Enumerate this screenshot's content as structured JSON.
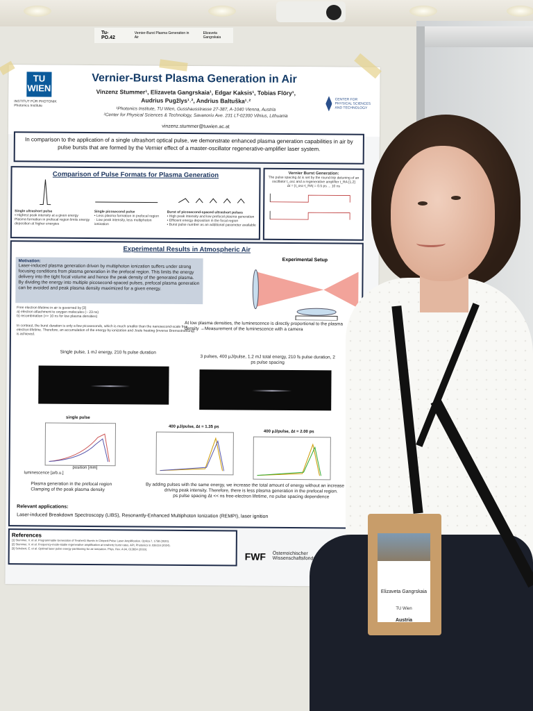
{
  "board": {
    "tag_code": "Tu-PO.42",
    "tag_title": "Vernier-Burst Plasma Generation in Air",
    "tag_author": "Elizaveta Gangrskaia"
  },
  "poster": {
    "title": "Vernier-Burst Plasma Generation in Air",
    "authors_line1": "Vinzenz Stummer¹, Elizaveta Gangrskaia¹, Edgar Kaksis¹, Tobias Flöry¹,",
    "authors_line2": "Audrius Pugžlys¹˒², Andrius Baltuška¹˒²",
    "affil1": "¹Photonics Institute, TU Wien, Gusshausstrasse 27-387, A-1040 Vienna, Austria",
    "affil2": "²Center for Physical Sciences & Technology, Savanoriu Ave. 231 LT-02300 Vilnius, Lithuania",
    "email": "vinzenz.stummer@tuwien.ac.at",
    "tu_logo": "TU WIEN",
    "institute": "INSTITUT FÜR PHOTONIK",
    "institute_sub": "Photonics Institute",
    "center": "CENTER FOR PHYSICAL SCIENCES AND TECHNOLOGY",
    "abstract": "In comparison to the application of a single ultrashort optical pulse, we demonstrate enhanced plasma generation capabilities in air by pulse bursts that are formed by the Vernier effect of a master-oscillator regenerative-amplifier laser system.",
    "comparison_title": "Comparison of Pulse Formats for Plasma Generation",
    "single_pulse": "Single ultrashort pulse",
    "single_pulse_notes": "• Highest peak intensity at a given energy\nPlasma formation in prefocal region limits energy deposition at higher energies",
    "pico_pulse": "Single picosecond pulse",
    "pico_notes": "• Less plasma formation in prefocal region\n· Low peak intensity, less multiphoton ionization",
    "burst_pulse": "Burst of picosecond-spaced ultrashort pulses",
    "burst_notes": "• High peak intensity and low prefocal plasma generation\n• Efficient energy deposition in the focal region\n• Burst pulse number as an additional parameter available",
    "vernier_title": "Vernier Burst Generation:",
    "vernier_text": "The pulse spacing Δt is set by the round-trip detuning of an oscillator t_osc and a regenerative amplifier t_RA [1,2]",
    "vernier_eq": "Δt = |t_osc-t_RA| = 0.5 ps ... 10 ns",
    "results_title": "Experimental Results in Atmospheric Air",
    "motivation": "Motivation:",
    "motivation_text": "Laser-induced plasma generation driven by multiphoton ionization suffers under strong focusing conditions from plasma generation in the prefocal region. This limits the energy delivery into the tight focal volume and hence the peak density of the generated plasma. By dividing the energy into multiple picosecond-spaced pulses, prefocal plasma generation can be avoided and peak plasma density maximized for a given energy.",
    "setup_title": "Experimental Setup",
    "lifetime_text": "Free electron lifetime in air is governed by [3]\n a) electron attachment to oxygen molecules (~ 23 ns)\n b) recombination (>> 10 ns for low plasma densities)",
    "burst_text": "In contrast, the burst duration is only a few picoseconds, which is much smaller than the nanosecond-scale free electron lifetime. Therefore, an accumulation of the energy by ionization and Joule heating (inverse Bremsstrahlung) is achieved.",
    "lum_text": "At low plasma densities, the luminescence is directly proportional to the plasma density →Measurement of the luminescence with a camera",
    "img1_caption": "Single pulse, 1 mJ energy, 210 fs pulse duration",
    "img2_caption": "3 pulses, 400 µJ/pulse, 1.2 mJ total energy, 210 fs pulse duration, 2 ps pulse spacing",
    "plot1_title": "single pulse",
    "plot2_title": "400 µJ/pulse, Δt = 1.35 ps",
    "plot3_title": "400 µJ/pulse, Δt = 2.00 ps",
    "xlabel": "position [mm]",
    "ylabel": "luminescence [arb.u.]",
    "concl1": "Plasma generation in the prefocal region\nClamping of the peak plasma density",
    "concl2": "By adding pulses with the same energy, we increase the total amount of energy without an increase in the driving peak intensity. Therefore, there is less plasma generation in the prefocal region.\nps pulse spacing Δt << ns free-electron lifetime, no pulse spacing dependence",
    "apps_title": "Relevant applications:",
    "apps_text": "Laser-induced Breakdown Spectroscopy (LIBS), Resonantly-Enhanced Multiphoton Ionization (REMPI), laser ignition",
    "refs_title": "References",
    "refs_text": "[1] Stummer, V. et al. Programmable Generation of Terahertz Bursts in Chirped-Pulse Laser Amplification. Optica 7, 1758 (2020).\n[2] Stummer, V. et al. Frequency-mode-stable regenerative amplification at terahertz burst rates. APL Photonics 9, 036116 (2024).\n[3] Schubert, E. et al. Optimal laser pulse energy partitioning for air ionization. Phys. Rev. A 94, 013824 (2016).",
    "fwf": "FWF",
    "fwf_text": "Österreichischer Wissenschaftsfonds"
  },
  "badge": {
    "name": "Elizaveta Gangrskaia",
    "org": "TU Wien",
    "country": "Austria"
  }
}
